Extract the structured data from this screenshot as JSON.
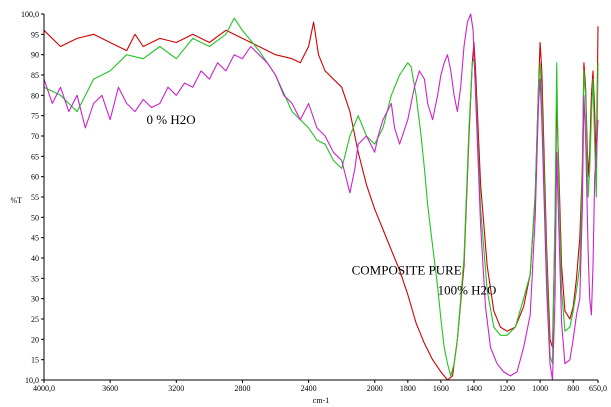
{
  "chart_data": {
    "type": "line",
    "xlabel": "cm-1",
    "ylabel": "%T",
    "xlim": [
      4000,
      650
    ],
    "ylim": [
      10,
      100
    ],
    "x_ticks": [
      {
        "value": 4000,
        "label": "4000,0"
      },
      {
        "value": 3600,
        "label": "3600"
      },
      {
        "value": 3200,
        "label": "3200"
      },
      {
        "value": 2800,
        "label": "2800"
      },
      {
        "value": 2400,
        "label": "2400"
      },
      {
        "value": 2000,
        "label": "2000"
      },
      {
        "value": 1800,
        "label": "1800"
      },
      {
        "value": 1600,
        "label": "1600"
      },
      {
        "value": 1400,
        "label": "1400"
      },
      {
        "value": 1200,
        "label": "1200"
      },
      {
        "value": 1000,
        "label": "1000"
      },
      {
        "value": 800,
        "label": "800"
      },
      {
        "value": 650,
        "label": "650,0"
      }
    ],
    "y_ticks": [
      {
        "value": 100,
        "label": "100,0"
      },
      {
        "value": 95,
        "label": "95"
      },
      {
        "value": 90,
        "label": "90"
      },
      {
        "value": 85,
        "label": "85"
      },
      {
        "value": 80,
        "label": "80"
      },
      {
        "value": 75,
        "label": "75"
      },
      {
        "value": 70,
        "label": "70"
      },
      {
        "value": 65,
        "label": "65"
      },
      {
        "value": 60,
        "label": "60"
      },
      {
        "value": 55,
        "label": "55"
      },
      {
        "value": 50,
        "label": "50"
      },
      {
        "value": 45,
        "label": "45"
      },
      {
        "value": 40,
        "label": "40"
      },
      {
        "value": 35,
        "label": "35"
      },
      {
        "value": 30,
        "label": "30"
      },
      {
        "value": 25,
        "label": "25"
      },
      {
        "value": 20,
        "label": "20"
      },
      {
        "value": 15,
        "label": "15"
      },
      {
        "value": 10,
        "label": "10,0"
      }
    ],
    "annotations": [
      {
        "text": "0 % H2O",
        "x": 3380,
        "y": 73
      },
      {
        "text": "COMPOSITE PURE",
        "x": 2140,
        "y": 36
      },
      {
        "text": "100% H2O",
        "x": 1620,
        "y": 31
      }
    ],
    "series": [
      {
        "color": "#d10000",
        "points": [
          [
            4000,
            96
          ],
          [
            3900,
            92
          ],
          [
            3800,
            94
          ],
          [
            3700,
            95
          ],
          [
            3600,
            93
          ],
          [
            3500,
            91
          ],
          [
            3450,
            95
          ],
          [
            3400,
            92
          ],
          [
            3300,
            94
          ],
          [
            3200,
            93
          ],
          [
            3100,
            95
          ],
          [
            3000,
            93
          ],
          [
            2900,
            96
          ],
          [
            2800,
            94
          ],
          [
            2700,
            92
          ],
          [
            2600,
            90
          ],
          [
            2500,
            89
          ],
          [
            2450,
            88
          ],
          [
            2400,
            92
          ],
          [
            2370,
            98
          ],
          [
            2340,
            90
          ],
          [
            2300,
            86
          ],
          [
            2250,
            84
          ],
          [
            2200,
            82
          ],
          [
            2150,
            76
          ],
          [
            2100,
            66
          ],
          [
            2050,
            58
          ],
          [
            2000,
            52
          ],
          [
            1950,
            47
          ],
          [
            1900,
            42
          ],
          [
            1850,
            37
          ],
          [
            1800,
            31
          ],
          [
            1750,
            24
          ],
          [
            1700,
            19
          ],
          [
            1650,
            15
          ],
          [
            1600,
            12
          ],
          [
            1560,
            10
          ],
          [
            1530,
            11
          ],
          [
            1500,
            20
          ],
          [
            1460,
            38
          ],
          [
            1430,
            70
          ],
          [
            1410,
            88
          ],
          [
            1400,
            93
          ],
          [
            1390,
            86
          ],
          [
            1360,
            58
          ],
          [
            1320,
            38
          ],
          [
            1280,
            27
          ],
          [
            1240,
            23
          ],
          [
            1200,
            22
          ],
          [
            1150,
            23
          ],
          [
            1100,
            28
          ],
          [
            1060,
            36
          ],
          [
            1030,
            55
          ],
          [
            1010,
            82
          ],
          [
            1000,
            93
          ],
          [
            990,
            86
          ],
          [
            960,
            42
          ],
          [
            940,
            20
          ],
          [
            925,
            18
          ],
          [
            910,
            48
          ],
          [
            900,
            78
          ],
          [
            890,
            66
          ],
          [
            870,
            38
          ],
          [
            850,
            27
          ],
          [
            820,
            25
          ],
          [
            800,
            28
          ],
          [
            780,
            35
          ],
          [
            760,
            45
          ],
          [
            745,
            62
          ],
          [
            735,
            88
          ],
          [
            725,
            82
          ],
          [
            710,
            60
          ],
          [
            700,
            66
          ],
          [
            690,
            80
          ],
          [
            680,
            86
          ],
          [
            670,
            76
          ],
          [
            660,
            62
          ],
          [
            650,
            97
          ]
        ]
      },
      {
        "color": "#22c422",
        "points": [
          [
            4000,
            82
          ],
          [
            3900,
            80
          ],
          [
            3800,
            76
          ],
          [
            3700,
            84
          ],
          [
            3600,
            86
          ],
          [
            3500,
            90
          ],
          [
            3400,
            89
          ],
          [
            3300,
            92
          ],
          [
            3200,
            89
          ],
          [
            3100,
            94
          ],
          [
            3000,
            92
          ],
          [
            2900,
            95
          ],
          [
            2850,
            99
          ],
          [
            2800,
            96
          ],
          [
            2700,
            91
          ],
          [
            2600,
            85
          ],
          [
            2500,
            76
          ],
          [
            2400,
            72
          ],
          [
            2350,
            69
          ],
          [
            2300,
            68
          ],
          [
            2250,
            64
          ],
          [
            2200,
            62
          ],
          [
            2150,
            70
          ],
          [
            2100,
            75
          ],
          [
            2050,
            70
          ],
          [
            2000,
            68
          ],
          [
            1950,
            72
          ],
          [
            1900,
            80
          ],
          [
            1850,
            85
          ],
          [
            1800,
            88
          ],
          [
            1780,
            87
          ],
          [
            1750,
            80
          ],
          [
            1720,
            70
          ],
          [
            1700,
            62
          ],
          [
            1680,
            53
          ],
          [
            1650,
            43
          ],
          [
            1620,
            33
          ],
          [
            1600,
            25
          ],
          [
            1580,
            18
          ],
          [
            1560,
            14
          ],
          [
            1540,
            11
          ],
          [
            1520,
            14
          ],
          [
            1500,
            20
          ],
          [
            1460,
            40
          ],
          [
            1430,
            72
          ],
          [
            1410,
            88
          ],
          [
            1400,
            89
          ],
          [
            1390,
            82
          ],
          [
            1360,
            52
          ],
          [
            1320,
            32
          ],
          [
            1280,
            23
          ],
          [
            1240,
            21
          ],
          [
            1200,
            21
          ],
          [
            1150,
            23
          ],
          [
            1100,
            30
          ],
          [
            1060,
            36
          ],
          [
            1030,
            56
          ],
          [
            1010,
            82
          ],
          [
            1000,
            88
          ],
          [
            990,
            80
          ],
          [
            960,
            38
          ],
          [
            940,
            16
          ],
          [
            925,
            14
          ],
          [
            910,
            50
          ],
          [
            900,
            88
          ],
          [
            890,
            62
          ],
          [
            870,
            32
          ],
          [
            850,
            22
          ],
          [
            820,
            23
          ],
          [
            800,
            27
          ],
          [
            780,
            32
          ],
          [
            760,
            38
          ],
          [
            745,
            60
          ],
          [
            735,
            86
          ],
          [
            725,
            80
          ],
          [
            710,
            55
          ],
          [
            700,
            62
          ],
          [
            690,
            75
          ],
          [
            680,
            84
          ],
          [
            670,
            68
          ],
          [
            660,
            55
          ],
          [
            650,
            88
          ]
        ]
      },
      {
        "color": "#cc22cc",
        "points": [
          [
            4000,
            84
          ],
          [
            3950,
            78
          ],
          [
            3900,
            82
          ],
          [
            3850,
            76
          ],
          [
            3800,
            80
          ],
          [
            3750,
            72
          ],
          [
            3700,
            78
          ],
          [
            3650,
            80
          ],
          [
            3600,
            74
          ],
          [
            3550,
            82
          ],
          [
            3500,
            78
          ],
          [
            3450,
            76
          ],
          [
            3400,
            79
          ],
          [
            3350,
            77
          ],
          [
            3300,
            78
          ],
          [
            3250,
            82
          ],
          [
            3200,
            80
          ],
          [
            3150,
            83
          ],
          [
            3100,
            82
          ],
          [
            3050,
            86
          ],
          [
            3000,
            84
          ],
          [
            2950,
            88
          ],
          [
            2900,
            86
          ],
          [
            2850,
            90
          ],
          [
            2800,
            89
          ],
          [
            2750,
            92
          ],
          [
            2700,
            90
          ],
          [
            2650,
            88
          ],
          [
            2600,
            85
          ],
          [
            2550,
            80
          ],
          [
            2500,
            78
          ],
          [
            2450,
            74
          ],
          [
            2400,
            78
          ],
          [
            2350,
            72
          ],
          [
            2300,
            70
          ],
          [
            2250,
            66
          ],
          [
            2200,
            64
          ],
          [
            2150,
            56
          ],
          [
            2120,
            62
          ],
          [
            2100,
            68
          ],
          [
            2050,
            70
          ],
          [
            2000,
            66
          ],
          [
            1980,
            70
          ],
          [
            1950,
            74
          ],
          [
            1900,
            78
          ],
          [
            1880,
            72
          ],
          [
            1850,
            68
          ],
          [
            1800,
            74
          ],
          [
            1760,
            82
          ],
          [
            1730,
            86
          ],
          [
            1700,
            84
          ],
          [
            1680,
            78
          ],
          [
            1650,
            74
          ],
          [
            1620,
            80
          ],
          [
            1600,
            85
          ],
          [
            1580,
            88
          ],
          [
            1560,
            90
          ],
          [
            1540,
            86
          ],
          [
            1520,
            80
          ],
          [
            1500,
            76
          ],
          [
            1480,
            82
          ],
          [
            1460,
            92
          ],
          [
            1440,
            98
          ],
          [
            1420,
            100
          ],
          [
            1405,
            96
          ],
          [
            1390,
            80
          ],
          [
            1360,
            48
          ],
          [
            1330,
            28
          ],
          [
            1300,
            18
          ],
          [
            1260,
            14
          ],
          [
            1220,
            12
          ],
          [
            1180,
            11
          ],
          [
            1140,
            12
          ],
          [
            1100,
            18
          ],
          [
            1060,
            26
          ],
          [
            1030,
            50
          ],
          [
            1010,
            78
          ],
          [
            1000,
            84
          ],
          [
            990,
            74
          ],
          [
            960,
            32
          ],
          [
            940,
            14
          ],
          [
            925,
            10
          ],
          [
            910,
            30
          ],
          [
            900,
            66
          ],
          [
            890,
            52
          ],
          [
            870,
            24
          ],
          [
            850,
            14
          ],
          [
            820,
            15
          ],
          [
            800,
            20
          ],
          [
            780,
            26
          ],
          [
            760,
            30
          ],
          [
            745,
            52
          ],
          [
            735,
            80
          ],
          [
            725,
            70
          ],
          [
            710,
            42
          ],
          [
            700,
            30
          ],
          [
            690,
            26
          ],
          [
            680,
            38
          ],
          [
            670,
            60
          ],
          [
            660,
            65
          ],
          [
            650,
            74
          ]
        ]
      }
    ]
  }
}
